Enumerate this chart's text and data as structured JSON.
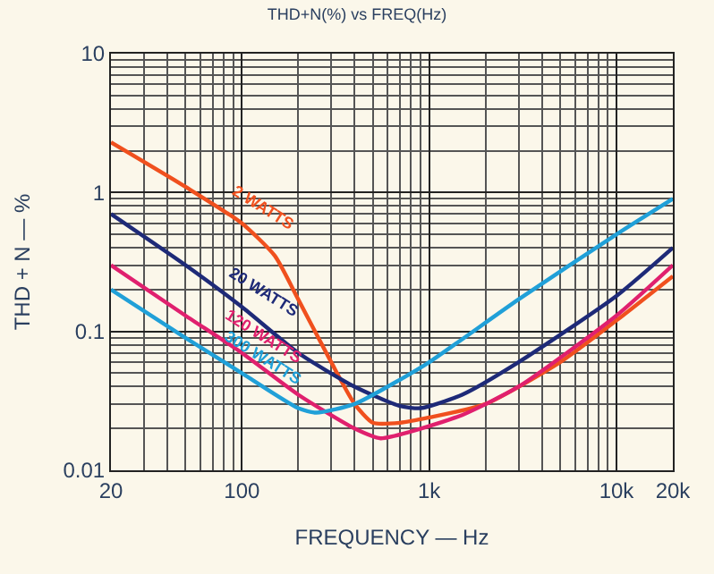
{
  "chart_data": {
    "type": "line",
    "title": "THD+N(%) vs FREQ(Hz)",
    "xlabel": "FREQUENCY — Hz",
    "ylabel": "THD + N — %",
    "log": "xy",
    "grid": true,
    "legend": false,
    "marker": "none",
    "line_style": "solid",
    "xlim": [
      20,
      20000
    ],
    "ylim": [
      0.01,
      10
    ],
    "xticks": [
      20,
      100,
      {
        "value": 1000,
        "label": "1k"
      },
      {
        "value": 10000,
        "label": "10k"
      },
      {
        "value": 20000,
        "label": "20k"
      }
    ],
    "yticks": [
      0.01,
      0.1,
      1,
      10
    ],
    "series": [
      {
        "name": "2 WATTS",
        "color": "#f0501e",
        "x": [
          20,
          50,
          100,
          150,
          200,
          300,
          400,
          500,
          700,
          1000,
          2000,
          5000,
          10000,
          20000
        ],
        "values": [
          2.3,
          1.1,
          0.6,
          0.35,
          0.17,
          0.06,
          0.03,
          0.022,
          0.022,
          0.024,
          0.03,
          0.06,
          0.12,
          0.25
        ]
      },
      {
        "name": "20 WATTS",
        "color": "#1e2a78",
        "x": [
          20,
          50,
          100,
          200,
          400,
          700,
          900,
          1500,
          3000,
          10000,
          20000
        ],
        "values": [
          0.7,
          0.3,
          0.15,
          0.07,
          0.04,
          0.029,
          0.028,
          0.035,
          0.06,
          0.18,
          0.4
        ]
      },
      {
        "name": "120 WATTS",
        "color": "#e0206e",
        "x": [
          20,
          50,
          100,
          200,
          400,
          550,
          800,
          1500,
          3000,
          10000,
          20000
        ],
        "values": [
          0.3,
          0.13,
          0.07,
          0.035,
          0.02,
          0.017,
          0.019,
          0.025,
          0.04,
          0.13,
          0.3
        ]
      },
      {
        "name": "300 WATTS",
        "color": "#20a0d8",
        "x": [
          20,
          50,
          100,
          200,
          250,
          400,
          700,
          1000,
          3000,
          10000,
          20000
        ],
        "values": [
          0.2,
          0.09,
          0.05,
          0.028,
          0.026,
          0.03,
          0.045,
          0.06,
          0.17,
          0.5,
          0.9
        ]
      }
    ]
  }
}
